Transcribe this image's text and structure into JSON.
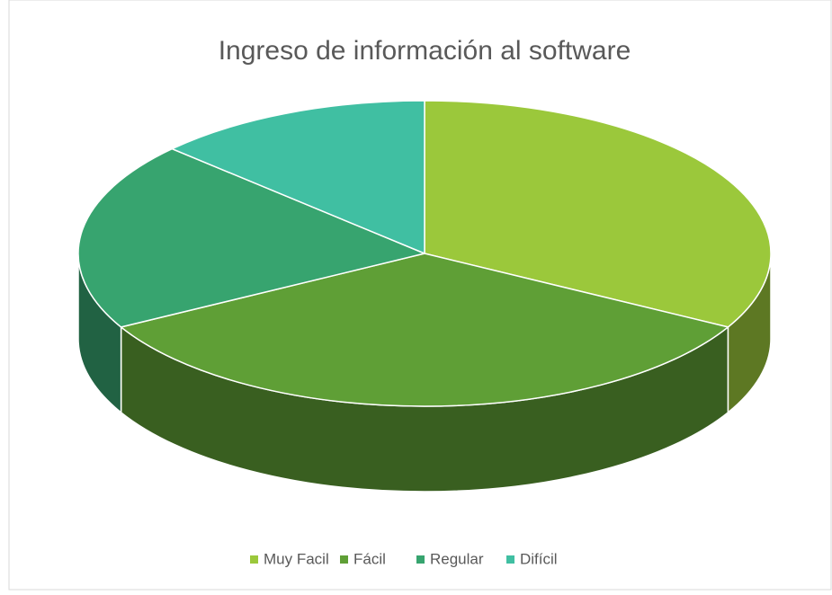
{
  "chart_data": {
    "type": "pie3d",
    "title": "Ingreso de información al software",
    "categories": [
      "Muy Facil",
      "Fácil",
      "Regular",
      "Difícil"
    ],
    "values": [
      33,
      34,
      20,
      13
    ],
    "colors": [
      "#9bc83b",
      "#5f9f36",
      "#37a46f",
      "#40bfa2"
    ],
    "legend": "bottom"
  }
}
